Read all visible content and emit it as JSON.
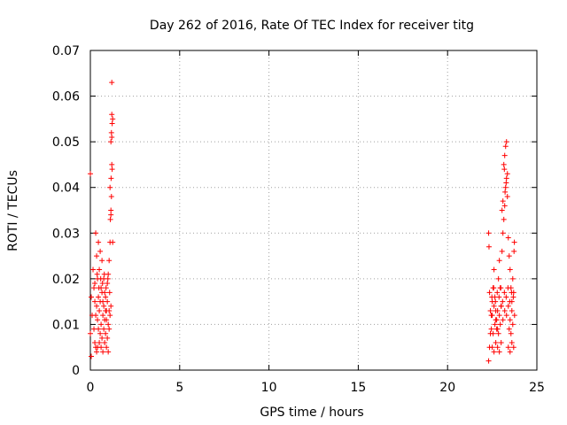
{
  "chart_data": {
    "type": "scatter",
    "title": "Day 262 of 2016, Rate Of TEC Index for receiver titg",
    "xlabel": "GPS time / hours",
    "ylabel": "ROTI / TECUs",
    "xlim": [
      0,
      25
    ],
    "ylim": [
      0,
      0.07
    ],
    "xticks": [
      0,
      5,
      10,
      15,
      20,
      25
    ],
    "yticks": [
      0,
      0.01,
      0.02,
      0.03,
      0.04,
      0.05,
      0.06,
      0.07
    ],
    "ytick_labels": [
      "0",
      "0.01",
      "0.02",
      "0.03",
      "0.04",
      "0.05",
      "0.06",
      "0.07"
    ],
    "grid": true,
    "marker": "+",
    "color": "#ff0000",
    "series": [
      {
        "x": [
          0.0,
          0.05,
          0.1,
          0.15,
          0.2,
          0.25,
          0.3,
          0.35,
          0.4,
          0.45,
          0.5,
          0.55,
          0.6,
          0.65,
          0.7,
          0.75,
          0.8,
          0.85,
          0.9,
          0.95,
          1.0,
          1.05,
          1.1,
          1.15,
          1.2,
          1.25,
          1.15,
          1.2,
          1.22,
          1.1,
          1.18,
          1.12,
          1.2,
          1.15,
          1.25,
          0.3,
          0.35,
          0.25,
          0.4,
          0.5,
          0.6,
          0.7,
          0.8,
          0.9,
          1.0,
          0.45,
          0.55,
          0.65,
          0.75,
          0.85,
          0.95,
          1.05,
          0.3,
          0.4,
          0.5,
          0.6,
          0.7,
          0.8,
          0.9,
          1.0,
          1.1,
          0.2,
          0.35,
          0.45,
          0.55,
          0.65,
          0.75,
          0.85,
          0.95,
          1.05,
          1.15,
          0.25,
          0.38,
          0.48,
          0.58,
          0.68,
          0.78,
          0.88,
          0.98,
          1.08,
          0.0,
          0.05,
          1.2,
          1.22,
          1.18,
          1.16,
          22.3,
          22.35,
          22.4,
          22.45,
          22.5,
          22.55,
          22.6,
          22.65,
          22.7,
          22.75,
          22.8,
          22.85,
          22.9,
          22.95,
          23.0,
          23.05,
          23.1,
          23.15,
          23.2,
          23.25,
          23.3,
          23.35,
          23.4,
          23.45,
          23.5,
          23.55,
          23.6,
          23.65,
          23.7,
          23.75,
          23.3,
          23.2,
          23.25,
          23.15,
          23.35,
          23.1,
          23.05,
          23.28,
          23.22,
          23.18,
          22.5,
          22.6,
          22.7,
          22.8,
          22.9,
          23.0,
          23.4,
          23.5,
          23.6,
          23.7,
          22.45,
          22.55,
          22.65,
          22.75,
          22.85,
          22.95,
          23.45,
          23.55,
          23.65,
          22.4,
          22.5,
          22.6,
          22.7,
          22.8,
          22.9,
          23.0,
          23.1,
          23.2,
          23.3,
          23.4,
          23.5,
          23.6,
          22.35,
          22.48,
          22.58,
          22.68,
          22.78,
          22.88,
          22.98,
          23.08,
          23.18,
          23.28,
          23.38,
          23.48,
          23.58,
          23.68,
          22.3,
          22.32,
          23.72,
          23.74
        ],
        "y": [
          0.008,
          0.016,
          0.012,
          0.022,
          0.018,
          0.015,
          0.03,
          0.025,
          0.02,
          0.028,
          0.022,
          0.026,
          0.018,
          0.024,
          0.015,
          0.02,
          0.017,
          0.013,
          0.011,
          0.019,
          0.021,
          0.024,
          0.028,
          0.034,
          0.045,
          0.055,
          0.05,
          0.051,
          0.044,
          0.04,
          0.038,
          0.033,
          0.063,
          0.035,
          0.028,
          0.005,
          0.004,
          0.006,
          0.005,
          0.006,
          0.005,
          0.004,
          0.006,
          0.005,
          0.004,
          0.009,
          0.008,
          0.007,
          0.009,
          0.008,
          0.007,
          0.009,
          0.012,
          0.011,
          0.013,
          0.01,
          0.012,
          0.011,
          0.013,
          0.01,
          0.012,
          0.009,
          0.014,
          0.016,
          0.015,
          0.017,
          0.014,
          0.016,
          0.015,
          0.013,
          0.014,
          0.019,
          0.021,
          0.018,
          0.02,
          0.019,
          0.021,
          0.018,
          0.02,
          0.017,
          0.043,
          0.003,
          0.056,
          0.054,
          0.052,
          0.042,
          0.002,
          0.005,
          0.008,
          0.012,
          0.015,
          0.018,
          0.022,
          0.016,
          0.013,
          0.011,
          0.009,
          0.02,
          0.024,
          0.018,
          0.014,
          0.026,
          0.03,
          0.033,
          0.036,
          0.04,
          0.042,
          0.038,
          0.029,
          0.025,
          0.022,
          0.018,
          0.015,
          0.02,
          0.017,
          0.012,
          0.05,
          0.047,
          0.049,
          0.045,
          0.043,
          0.037,
          0.035,
          0.041,
          0.039,
          0.044,
          0.005,
          0.004,
          0.006,
          0.005,
          0.004,
          0.006,
          0.005,
          0.004,
          0.006,
          0.005,
          0.009,
          0.008,
          0.01,
          0.009,
          0.008,
          0.01,
          0.009,
          0.008,
          0.01,
          0.013,
          0.012,
          0.014,
          0.011,
          0.013,
          0.012,
          0.014,
          0.011,
          0.013,
          0.012,
          0.014,
          0.011,
          0.013,
          0.017,
          0.016,
          0.018,
          0.015,
          0.017,
          0.016,
          0.018,
          0.015,
          0.017,
          0.016,
          0.018,
          0.015,
          0.017,
          0.016,
          0.03,
          0.027,
          0.026,
          0.028
        ]
      }
    ]
  }
}
